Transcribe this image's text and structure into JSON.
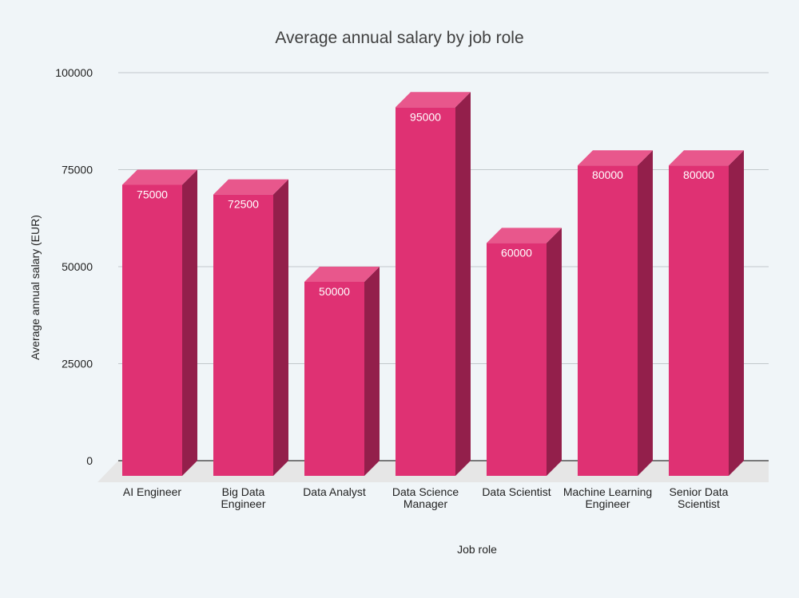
{
  "chart_data": {
    "type": "bar",
    "title": "Average annual salary by job role",
    "xlabel": "Job role",
    "ylabel": "Average annual salary (EUR)",
    "categories": [
      "AI Engineer",
      "Big Data Engineer",
      "Data Analyst",
      "Data Science Manager",
      "Data Scientist",
      "Machine Learning Engineer",
      "Senior Data Scientist"
    ],
    "category_lines": [
      [
        "AI Engineer"
      ],
      [
        "Big Data",
        "Engineer"
      ],
      [
        "Data Analyst"
      ],
      [
        "Data Science",
        "Manager"
      ],
      [
        "Data Scientist"
      ],
      [
        "Machine Learning",
        "Engineer"
      ],
      [
        "Senior Data",
        "Scientist"
      ]
    ],
    "values": [
      75000,
      72500,
      50000,
      95000,
      60000,
      80000,
      80000
    ],
    "yticks": [
      0,
      25000,
      50000,
      75000,
      100000
    ],
    "ylim": [
      0,
      100000
    ],
    "grid": true,
    "style": "3d-bar",
    "colors": {
      "bar_front": "#df3173",
      "bar_top": "#e8578c",
      "bar_side": "#931f4b",
      "floor": "#e6e6e6",
      "background": "#f0f5f8"
    }
  }
}
